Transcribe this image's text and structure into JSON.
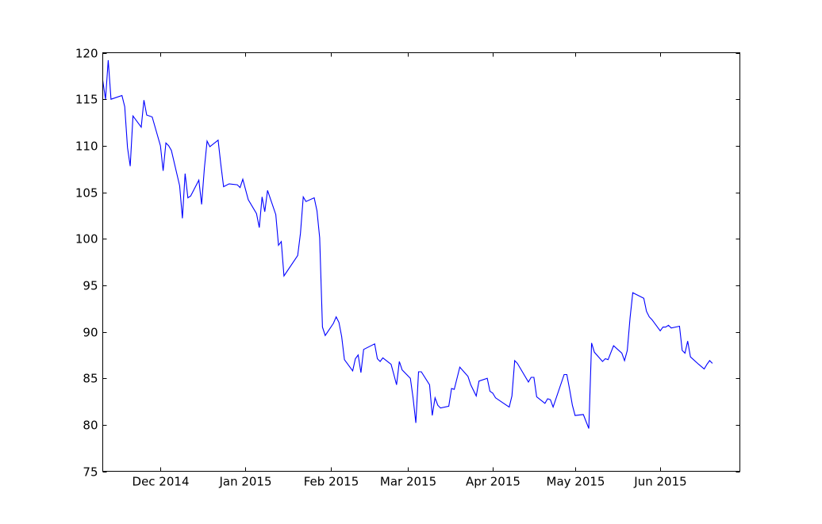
{
  "chart_data": {
    "type": "line",
    "title": "",
    "xlabel": "",
    "ylabel": "",
    "x_type": "date",
    "xlim": [
      "2014-11-10",
      "2015-06-30"
    ],
    "ylim": [
      75,
      120
    ],
    "y_ticks": [
      75,
      80,
      85,
      90,
      95,
      100,
      105,
      110,
      115,
      120
    ],
    "x_ticks": [
      {
        "date": "2014-12-01",
        "label": "Dec 2014"
      },
      {
        "date": "2015-01-01",
        "label": "Jan 2015"
      },
      {
        "date": "2015-02-01",
        "label": "Feb 2015"
      },
      {
        "date": "2015-03-01",
        "label": "Mar 2015"
      },
      {
        "date": "2015-04-01",
        "label": "Apr 2015"
      },
      {
        "date": "2015-05-01",
        "label": "May 2015"
      },
      {
        "date": "2015-06-01",
        "label": "Jun 2015"
      }
    ],
    "grid": false,
    "legend": "none",
    "series": [
      {
        "color": "#0000ff",
        "points": [
          [
            "2014-11-10",
            117.0
          ],
          [
            "2014-11-11",
            115.0
          ],
          [
            "2014-11-12",
            119.2
          ],
          [
            "2014-11-13",
            115.0
          ],
          [
            "2014-11-17",
            115.4
          ],
          [
            "2014-11-18",
            114.2
          ],
          [
            "2014-11-19",
            109.8
          ],
          [
            "2014-11-20",
            107.8
          ],
          [
            "2014-11-21",
            113.2
          ],
          [
            "2014-11-24",
            112.0
          ],
          [
            "2014-11-25",
            114.9
          ],
          [
            "2014-11-26",
            113.3
          ],
          [
            "2014-11-28",
            113.1
          ],
          [
            "2014-12-01",
            110.0
          ],
          [
            "2014-12-02",
            107.3
          ],
          [
            "2014-12-03",
            110.3
          ],
          [
            "2014-12-04",
            110.0
          ],
          [
            "2014-12-05",
            109.5
          ],
          [
            "2014-12-08",
            105.7
          ],
          [
            "2014-12-09",
            102.2
          ],
          [
            "2014-12-10",
            107.0
          ],
          [
            "2014-12-11",
            104.4
          ],
          [
            "2014-12-12",
            104.6
          ],
          [
            "2014-12-15",
            106.3
          ],
          [
            "2014-12-16",
            103.7
          ],
          [
            "2014-12-17",
            107.6
          ],
          [
            "2014-12-18",
            110.5
          ],
          [
            "2014-12-19",
            109.9
          ],
          [
            "2014-12-22",
            110.6
          ],
          [
            "2014-12-23",
            108.0
          ],
          [
            "2014-12-24",
            105.6
          ],
          [
            "2014-12-26",
            105.9
          ],
          [
            "2014-12-29",
            105.8
          ],
          [
            "2014-12-30",
            105.5
          ],
          [
            "2014-12-31",
            106.4
          ],
          [
            "2015-01-02",
            104.2
          ],
          [
            "2015-01-05",
            102.7
          ],
          [
            "2015-01-06",
            101.2
          ],
          [
            "2015-01-07",
            104.5
          ],
          [
            "2015-01-08",
            102.9
          ],
          [
            "2015-01-09",
            105.2
          ],
          [
            "2015-01-12",
            102.6
          ],
          [
            "2015-01-13",
            99.3
          ],
          [
            "2015-01-14",
            99.7
          ],
          [
            "2015-01-15",
            96.0
          ],
          [
            "2015-01-20",
            98.2
          ],
          [
            "2015-01-21",
            100.6
          ],
          [
            "2015-01-22",
            104.5
          ],
          [
            "2015-01-23",
            104.0
          ],
          [
            "2015-01-26",
            104.4
          ],
          [
            "2015-01-27",
            103.0
          ],
          [
            "2015-01-28",
            100.1
          ],
          [
            "2015-01-29",
            90.5
          ],
          [
            "2015-01-30",
            89.6
          ],
          [
            "2015-02-02",
            90.9
          ],
          [
            "2015-02-03",
            91.6
          ],
          [
            "2015-02-04",
            91.0
          ],
          [
            "2015-02-05",
            89.5
          ],
          [
            "2015-02-06",
            87.0
          ],
          [
            "2015-02-09",
            85.8
          ],
          [
            "2015-02-10",
            87.1
          ],
          [
            "2015-02-11",
            87.5
          ],
          [
            "2015-02-12",
            85.6
          ],
          [
            "2015-02-13",
            88.1
          ],
          [
            "2015-02-17",
            88.7
          ],
          [
            "2015-02-18",
            87.1
          ],
          [
            "2015-02-19",
            86.8
          ],
          [
            "2015-02-20",
            87.2
          ],
          [
            "2015-02-23",
            86.5
          ],
          [
            "2015-02-24",
            85.4
          ],
          [
            "2015-02-25",
            84.3
          ],
          [
            "2015-02-26",
            86.8
          ],
          [
            "2015-02-27",
            85.9
          ],
          [
            "2015-03-02",
            85.0
          ],
          [
            "2015-03-03",
            82.9
          ],
          [
            "2015-03-04",
            80.2
          ],
          [
            "2015-03-05",
            85.7
          ],
          [
            "2015-03-06",
            85.7
          ],
          [
            "2015-03-09",
            84.3
          ],
          [
            "2015-03-10",
            81.0
          ],
          [
            "2015-03-11",
            82.9
          ],
          [
            "2015-03-12",
            82.1
          ],
          [
            "2015-03-13",
            81.8
          ],
          [
            "2015-03-16",
            82.0
          ],
          [
            "2015-03-17",
            83.9
          ],
          [
            "2015-03-18",
            83.8
          ],
          [
            "2015-03-20",
            86.2
          ],
          [
            "2015-03-23",
            85.2
          ],
          [
            "2015-03-24",
            84.3
          ],
          [
            "2015-03-26",
            83.1
          ],
          [
            "2015-03-27",
            84.7
          ],
          [
            "2015-03-30",
            85.0
          ],
          [
            "2015-03-31",
            83.6
          ],
          [
            "2015-04-01",
            83.4
          ],
          [
            "2015-04-02",
            82.9
          ],
          [
            "2015-04-06",
            82.1
          ],
          [
            "2015-04-07",
            81.9
          ],
          [
            "2015-04-08",
            83.1
          ],
          [
            "2015-04-09",
            86.9
          ],
          [
            "2015-04-10",
            86.6
          ],
          [
            "2015-04-14",
            84.6
          ],
          [
            "2015-04-15",
            85.1
          ],
          [
            "2015-04-16",
            85.1
          ],
          [
            "2015-04-17",
            83.0
          ],
          [
            "2015-04-20",
            82.3
          ],
          [
            "2015-04-21",
            82.8
          ],
          [
            "2015-04-22",
            82.7
          ],
          [
            "2015-04-23",
            81.9
          ],
          [
            "2015-04-27",
            85.4
          ],
          [
            "2015-04-28",
            85.4
          ],
          [
            "2015-04-29",
            83.8
          ],
          [
            "2015-04-30",
            82.1
          ],
          [
            "2015-05-01",
            81.0
          ],
          [
            "2015-05-04",
            81.1
          ],
          [
            "2015-05-06",
            79.6
          ],
          [
            "2015-05-07",
            88.8
          ],
          [
            "2015-05-08",
            87.8
          ],
          [
            "2015-05-11",
            86.8
          ],
          [
            "2015-05-12",
            87.1
          ],
          [
            "2015-05-13",
            87.0
          ],
          [
            "2015-05-15",
            88.5
          ],
          [
            "2015-05-18",
            87.7
          ],
          [
            "2015-05-19",
            86.9
          ],
          [
            "2015-05-20",
            88.0
          ],
          [
            "2015-05-21",
            91.5
          ],
          [
            "2015-05-22",
            94.2
          ],
          [
            "2015-05-26",
            93.6
          ],
          [
            "2015-05-27",
            92.2
          ],
          [
            "2015-05-28",
            91.6
          ],
          [
            "2015-05-29",
            91.3
          ],
          [
            "2015-06-01",
            90.1
          ],
          [
            "2015-06-02",
            90.5
          ],
          [
            "2015-06-03",
            90.5
          ],
          [
            "2015-06-04",
            90.7
          ],
          [
            "2015-06-05",
            90.4
          ],
          [
            "2015-06-08",
            90.6
          ],
          [
            "2015-06-09",
            88.0
          ],
          [
            "2015-06-10",
            87.7
          ],
          [
            "2015-06-11",
            89.0
          ],
          [
            "2015-06-12",
            87.3
          ],
          [
            "2015-06-15",
            86.5
          ],
          [
            "2015-06-17",
            86.0
          ],
          [
            "2015-06-18",
            86.5
          ],
          [
            "2015-06-19",
            86.9
          ],
          [
            "2015-06-20",
            86.6
          ]
        ]
      }
    ]
  }
}
